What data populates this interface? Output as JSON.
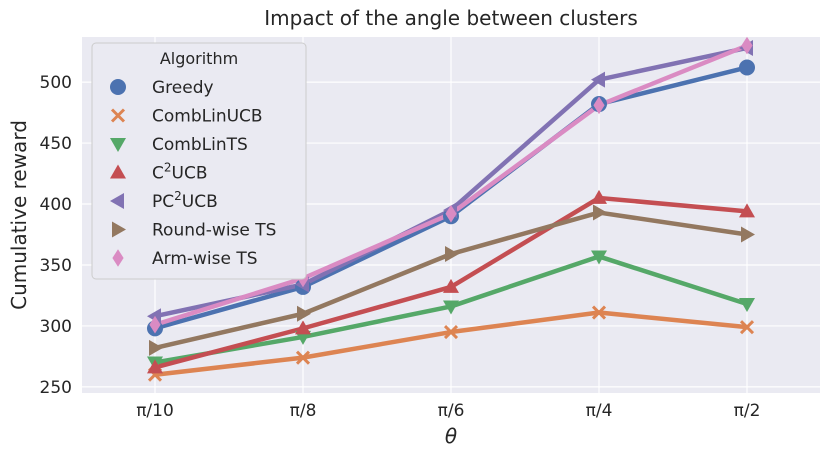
{
  "chart_data": {
    "type": "line",
    "title": "Impact of the angle between clusters",
    "xlabel": "θ",
    "ylabel": "Cumulative reward",
    "categories": [
      "π/10",
      "π/8",
      "π/6",
      "π/4",
      "π/2"
    ],
    "ylim": [
      245,
      537
    ],
    "yticks": [
      250,
      300,
      350,
      400,
      450,
      500
    ],
    "grid": true,
    "legend": {
      "title": "Algorithm",
      "position": "top-left"
    },
    "series": [
      {
        "name": "Greedy",
        "label_main": "Greedy",
        "label_sup": "",
        "label_tail": "",
        "marker": "circle",
        "color": "#4c72b0",
        "values": [
          298,
          332,
          390,
          482,
          512
        ]
      },
      {
        "name": "CombLinUCB",
        "label_main": "CombLinUCB",
        "label_sup": "",
        "label_tail": "",
        "marker": "x",
        "color": "#dd8452",
        "values": [
          260,
          274,
          295,
          311,
          299
        ]
      },
      {
        "name": "CombLinTS",
        "label_main": "CombLinTS",
        "label_sup": "",
        "label_tail": "",
        "marker": "triangle-down",
        "color": "#55a868",
        "values": [
          270,
          291,
          316,
          357,
          318
        ]
      },
      {
        "name": "C2UCB",
        "label_main": "C",
        "label_sup": "2",
        "label_tail": "UCB",
        "marker": "triangle-up",
        "color": "#c44e52",
        "values": [
          266,
          298,
          332,
          405,
          394
        ]
      },
      {
        "name": "PC2UCB",
        "label_main": "PC",
        "label_sup": "2",
        "label_tail": "UCB",
        "marker": "triangle-left",
        "color": "#8172b3",
        "values": [
          308,
          334,
          395,
          502,
          528
        ]
      },
      {
        "name": "Round-wise TS",
        "label_main": "Round-wise TS",
        "label_sup": "",
        "label_tail": "",
        "marker": "triangle-right",
        "color": "#937860",
        "values": [
          282,
          310,
          359,
          393,
          375
        ]
      },
      {
        "name": "Arm-wise TS",
        "label_main": "Arm-wise TS",
        "label_sup": "",
        "label_tail": "",
        "marker": "diamond",
        "color": "#da8bc3",
        "values": [
          301,
          339,
          392,
          481,
          530
        ]
      }
    ]
  }
}
